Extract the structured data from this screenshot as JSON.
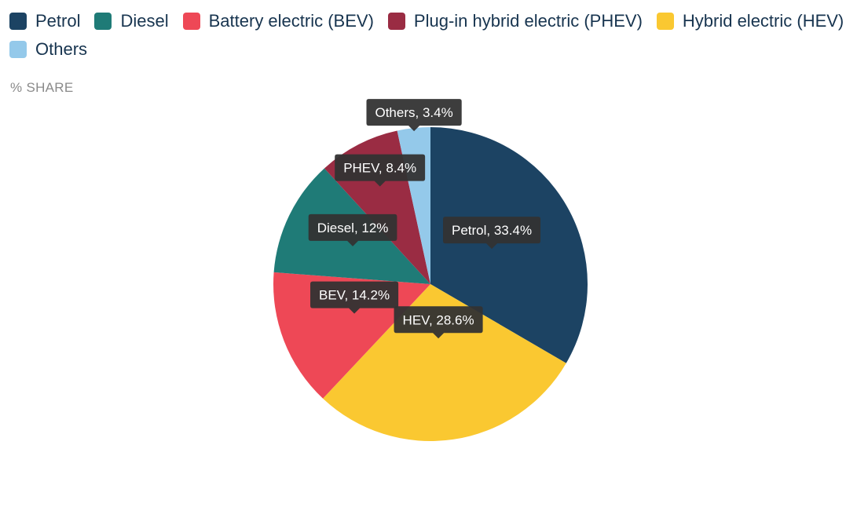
{
  "legend": [
    {
      "label": "Petrol",
      "color": "#1c4363"
    },
    {
      "label": "Diesel",
      "color": "#1f7b77"
    },
    {
      "label": "Battery electric (BEV)",
      "color": "#ee4856"
    },
    {
      "label": "Plug-in hybrid electric (PHEV)",
      "color": "#9a2c43"
    },
    {
      "label": "Hybrid electric (HEV)",
      "color": "#fac831"
    },
    {
      "label": "Others",
      "color": "#94c9ea"
    }
  ],
  "unit_label": "% SHARE",
  "chart_data": {
    "type": "pie",
    "title": "",
    "unit": "% SHARE",
    "legend_position": "top-left",
    "slices": [
      {
        "name": "Petrol",
        "label": "Petrol, 33.4%",
        "value": 33.4,
        "color": "#1c4363"
      },
      {
        "name": "Hybrid electric (HEV)",
        "label": "HEV, 28.6%",
        "value": 28.6,
        "color": "#fac831"
      },
      {
        "name": "Battery electric (BEV)",
        "label": "BEV, 14.2%",
        "value": 14.2,
        "color": "#ee4856"
      },
      {
        "name": "Diesel",
        "label": "Diesel, 12%",
        "value": 12,
        "color": "#1f7b77"
      },
      {
        "name": "Plug-in hybrid electric (PHEV)",
        "label": "PHEV, 8.4%",
        "value": 8.4,
        "color": "#9a2c43"
      },
      {
        "name": "Others",
        "label": "Others, 3.4%",
        "value": 3.4,
        "color": "#94c9ea"
      }
    ]
  }
}
